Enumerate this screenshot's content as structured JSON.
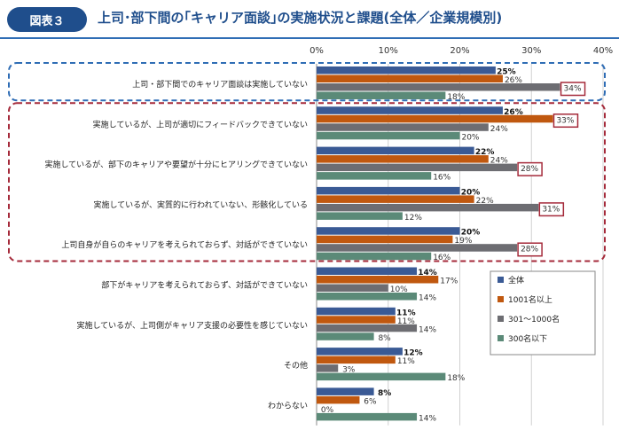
{
  "header": {
    "figure_label": "図表３",
    "title": "上司･部下間の｢キャリア面談｣の実施状況と課題(全体／企業規模別)"
  },
  "chart_data": {
    "type": "bar",
    "orientation": "horizontal",
    "xlim": [
      0,
      40
    ],
    "ticks": [
      "0%",
      "10%",
      "20%",
      "30%",
      "40%"
    ],
    "categories": [
      "上司・部下間でのキャリア面談は実施していない",
      "実施しているが、上司が適切にフィードバックできていない",
      "実施しているが、部下のキャリアや要望が十分にヒアリングできていない",
      "実施しているが、実質的に行われていない、形骸化している",
      "上司自身が自らのキャリアを考えられておらず、対話ができていない",
      "部下がキャリアを考えられておらず、対話ができていない",
      "実施しているが、上司側がキャリア支援の必要性を感じていない",
      "その他",
      "わからない"
    ],
    "series": [
      {
        "name": "全体",
        "color": "#3a5a95",
        "values": [
          25,
          26,
          22,
          20,
          20,
          14,
          11,
          12,
          8
        ]
      },
      {
        "name": "1001名以上",
        "color": "#c0580f",
        "values": [
          26,
          33,
          24,
          22,
          19,
          17,
          11,
          11,
          6
        ]
      },
      {
        "name": "301～1000名",
        "color": "#6d6d72",
        "values": [
          34,
          24,
          28,
          31,
          28,
          10,
          14,
          3,
          0
        ]
      },
      {
        "name": "300名以下",
        "color": "#5b8a78",
        "values": [
          18,
          20,
          16,
          12,
          16,
          14,
          8,
          18,
          14
        ]
      }
    ],
    "highlighted": [
      {
        "category": 0,
        "series": 2
      },
      {
        "category": 1,
        "series": 1
      },
      {
        "category": 2,
        "series": 2
      },
      {
        "category": 3,
        "series": 2
      },
      {
        "category": 4,
        "series": 2
      }
    ],
    "groups": [
      {
        "name": "group-not-implemented",
        "from": 0,
        "to": 0,
        "color": "#2f6db5",
        "style": "dashed"
      },
      {
        "name": "group-issues",
        "from": 1,
        "to": 4,
        "color": "#a52a3a",
        "style": "dashed"
      }
    ],
    "legend_position": "right"
  }
}
